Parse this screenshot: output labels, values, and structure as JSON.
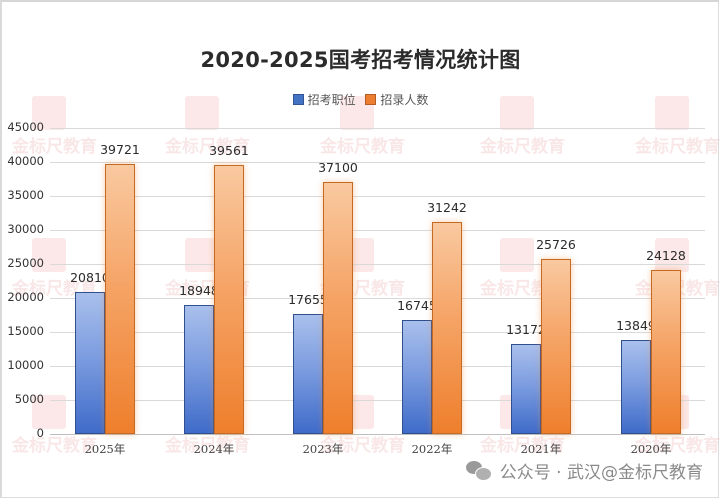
{
  "chart_data": {
    "type": "bar",
    "title": "2020-2025国考招考情况统计图",
    "categories": [
      "2025年",
      "2024年",
      "2023年",
      "2022年",
      "2021年",
      "2020年"
    ],
    "series": [
      {
        "name": "招考职位",
        "color": "#4472c4",
        "values": [
          20810,
          18948,
          17655,
          16745,
          13172,
          13849
        ]
      },
      {
        "name": "招录人数",
        "color": "#ed7d31",
        "values": [
          39721,
          39561,
          37100,
          31242,
          25726,
          24128
        ]
      }
    ],
    "xlabel": "",
    "ylabel": "",
    "ylim": [
      0,
      45000
    ],
    "yticks": [
      0,
      5000,
      10000,
      15000,
      20000,
      25000,
      30000,
      35000,
      40000,
      45000
    ],
    "grid": true,
    "legend_position": "top",
    "data_labels": true
  },
  "title": "2020-2025国考招考情况统计图",
  "legend": [
    {
      "label": "招考职位",
      "color": "#4472c4"
    },
    {
      "label": "招录人数",
      "color": "#ed7d31"
    }
  ],
  "yticks": [
    "45000",
    "40000",
    "35000",
    "30000",
    "25000",
    "20000",
    "15000",
    "10000",
    "5000",
    "0"
  ],
  "groups": [
    {
      "x": "2025年",
      "a": "20810",
      "b": "39721"
    },
    {
      "x": "2024年",
      "a": "18948",
      "b": "39561"
    },
    {
      "x": "2023年",
      "a": "17655",
      "b": "37100"
    },
    {
      "x": "2022年",
      "a": "16745",
      "b": "31242"
    },
    {
      "x": "2021年",
      "a": "13172",
      "b": "25726"
    },
    {
      "x": "2020年",
      "a": "13849",
      "b": "24128"
    }
  ],
  "watermark": "金标尺教育",
  "footer": {
    "icon": "wechat-icon",
    "text": "公众号 · 武汉@金标尺教育"
  }
}
